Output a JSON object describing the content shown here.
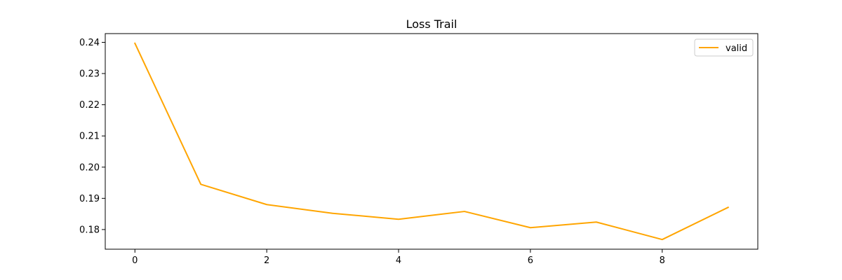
{
  "chart_data": {
    "type": "line",
    "title": "Loss Trail",
    "xlabel": "",
    "ylabel": "",
    "x": [
      0,
      1,
      2,
      3,
      4,
      5,
      6,
      7,
      8,
      9
    ],
    "series": [
      {
        "name": "valid",
        "color": "#ffa500",
        "values": [
          0.2397,
          0.1945,
          0.188,
          0.1852,
          0.1833,
          0.1858,
          0.1806,
          0.1824,
          0.1768,
          0.1871
        ]
      }
    ],
    "xlim": [
      -0.45,
      9.45
    ],
    "ylim": [
      0.1737,
      0.2428
    ],
    "xticks": [
      0,
      2,
      4,
      6,
      8
    ],
    "xtick_labels": [
      "0",
      "2",
      "4",
      "6",
      "8"
    ],
    "yticks": [
      0.18,
      0.19,
      0.2,
      0.21,
      0.22,
      0.23,
      0.24
    ],
    "ytick_labels": [
      "0.18",
      "0.19",
      "0.20",
      "0.21",
      "0.22",
      "0.23",
      "0.24"
    ],
    "grid": false,
    "legend_position": "top-right"
  }
}
